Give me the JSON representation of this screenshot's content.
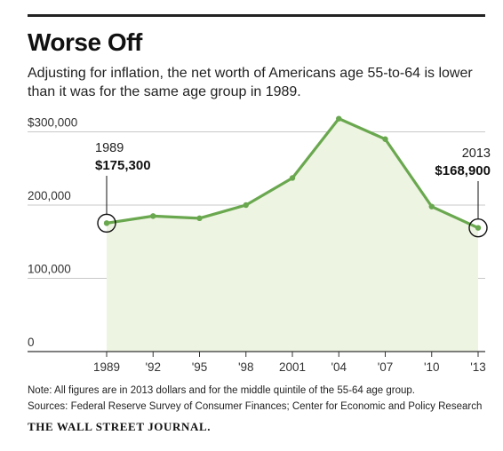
{
  "title": "Worse Off",
  "subtitle": "Adjusting for inflation, the net worth of Americans age 55-to-64 is lower than it was for the same age group in 1989.",
  "note": "Note: All figures are in 2013 dollars and for the middle quintile of the 55-64 age group.",
  "sources": "Sources: Federal Reserve Survey of Consumer Finances; Center for Economic and Policy Research",
  "masthead": "THE WALL STREET JOURNAL.",
  "colors": {
    "line": "#6aa84f",
    "fill": "#eef4e2",
    "grid": "#c8c8c8",
    "axis": "#333333"
  },
  "chart_data": {
    "type": "area",
    "title": "",
    "xlabel": "",
    "ylabel": "",
    "categories": [
      "1989",
      "'92",
      "'95",
      "'98",
      "2001",
      "'04",
      "'07",
      "'10",
      "'13"
    ],
    "values": [
      175300,
      185000,
      182000,
      200000,
      237000,
      318000,
      290000,
      198000,
      168900
    ],
    "yticks": [
      0,
      100000,
      200000,
      300000
    ],
    "ytick_labels": [
      "0",
      "100,000",
      "200,000",
      "$300,000"
    ],
    "ylim": [
      0,
      320000
    ],
    "grid": true,
    "annotations": [
      {
        "index": 0,
        "year": "1989",
        "value": "$175,300"
      },
      {
        "index": 8,
        "year": "2013",
        "value": "$168,900"
      }
    ]
  }
}
